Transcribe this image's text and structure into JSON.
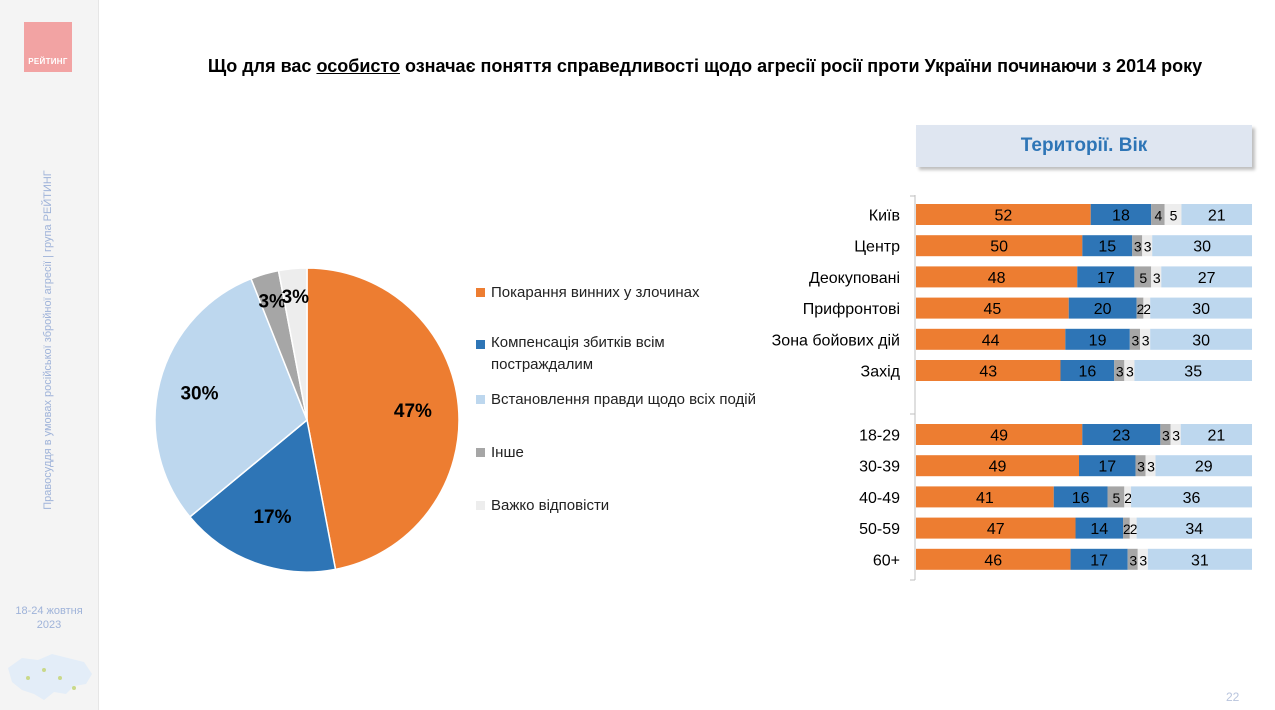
{
  "brand": {
    "logo_text": "РЕЙТИНГ"
  },
  "sidebar": {
    "vertical_text": "Правосуддя в умовах російської збройної агресії | група РЕЙТИНГ",
    "date_line1": "18-24 жовтня",
    "date_line2": "2023"
  },
  "title": {
    "before": "Що для вас ",
    "underlined": "особисто",
    "after": " означає поняття справедливості щодо агресії росії проти України починаючи з 2014 року"
  },
  "banner": "Території. Вік",
  "page_number": "22",
  "colors": {
    "orange": "#ed7d31",
    "blue": "#2e75b6",
    "light_blue": "#bdd7ee",
    "gray": "#a6a6a6",
    "very_light": "#ededed"
  },
  "chart_data": [
    {
      "type": "pie",
      "labels": [
        "Покарання винних у злочинах",
        "Компенсація збитків всім постраждалим",
        "Встановлення правди щодо всіх подій",
        "Інше",
        "Важко відповісти"
      ],
      "values": [
        47,
        17,
        30,
        3,
        3
      ],
      "data_labels": [
        "47%",
        "17%",
        "30%",
        "3%",
        "3%"
      ],
      "colors": [
        "#ed7d31",
        "#2e75b6",
        "#bdd7ee",
        "#a6a6a6",
        "#ededed"
      ],
      "legend": "right"
    },
    {
      "type": "bar",
      "orientation": "horizontal",
      "stacked": true,
      "normalized": true,
      "categories": [
        "Київ",
        "Центр",
        "Деокуповані",
        "Прифронтові",
        "Зона бойових дій",
        "Захід",
        "18-29",
        "30-39",
        "40-49",
        "50-59",
        "60+"
      ],
      "groups": [
        6,
        5
      ],
      "series": [
        {
          "values": [
            52,
            50,
            48,
            45,
            44,
            43,
            49,
            49,
            41,
            47,
            46
          ],
          "color": "#ed7d31"
        },
        {
          "values": [
            18,
            15,
            17,
            20,
            19,
            16,
            23,
            17,
            16,
            14,
            17
          ],
          "color": "#2e75b6"
        },
        {
          "values": [
            4,
            3,
            5,
            2,
            3,
            3,
            3,
            3,
            5,
            2,
            3
          ],
          "color": "#a6a6a6"
        },
        {
          "values": [
            5,
            3,
            3,
            2,
            3,
            3,
            3,
            3,
            2,
            2,
            3
          ],
          "color": "#ededed"
        },
        {
          "values": [
            21,
            30,
            27,
            30,
            30,
            35,
            21,
            29,
            36,
            34,
            31
          ],
          "color": "#bdd7ee"
        }
      ]
    }
  ]
}
